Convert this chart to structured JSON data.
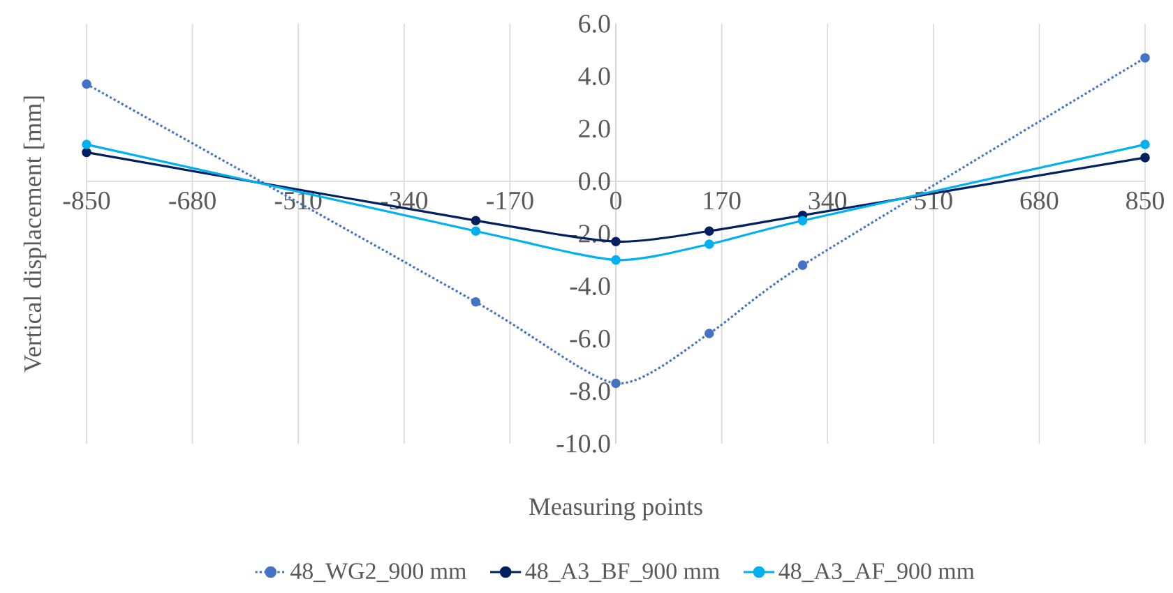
{
  "chart_data": {
    "type": "line",
    "xlabel": "Measuring points",
    "ylabel": "Vertical displacement [mm]",
    "x": [
      -850,
      -225,
      0,
      150,
      300,
      850
    ],
    "series": [
      {
        "name": "48_WG2_900 mm",
        "color": "#4472c4",
        "line_style": "dotted",
        "values": [
          3.7,
          -4.6,
          -7.7,
          -5.8,
          -3.2,
          4.7
        ]
      },
      {
        "name": "48_A3_BF_900 mm",
        "color": "#002060",
        "line_style": "solid",
        "values": [
          1.1,
          -1.5,
          -2.3,
          -1.9,
          -1.3,
          0.9
        ]
      },
      {
        "name": "48_A3_AF_900 mm",
        "color": "#00b0f0",
        "line_style": "solid",
        "values": [
          1.4,
          -1.9,
          -3.0,
          -2.4,
          -1.5,
          1.4
        ]
      }
    ],
    "marker": "circle",
    "grid": "x",
    "legend": "bottom",
    "xlim": [
      -850,
      850
    ],
    "xticks": [
      -850,
      -680,
      -510,
      -340,
      -170,
      0,
      170,
      340,
      510,
      680,
      850
    ],
    "ylim": [
      -10,
      6
    ],
    "yticks": [
      {
        "value": -10,
        "label": "-10.0"
      },
      {
        "value": -8,
        "label": "-8.0"
      },
      {
        "value": -6,
        "label": "-6.0"
      },
      {
        "value": -4,
        "label": "-4.0"
      },
      {
        "value": -2,
        "label": "-2.0"
      },
      {
        "value": 0,
        "label": "0.0"
      },
      {
        "value": 2,
        "label": "2.0"
      },
      {
        "value": 4,
        "label": "4.0"
      },
      {
        "value": 6,
        "label": "6.0"
      }
    ]
  }
}
